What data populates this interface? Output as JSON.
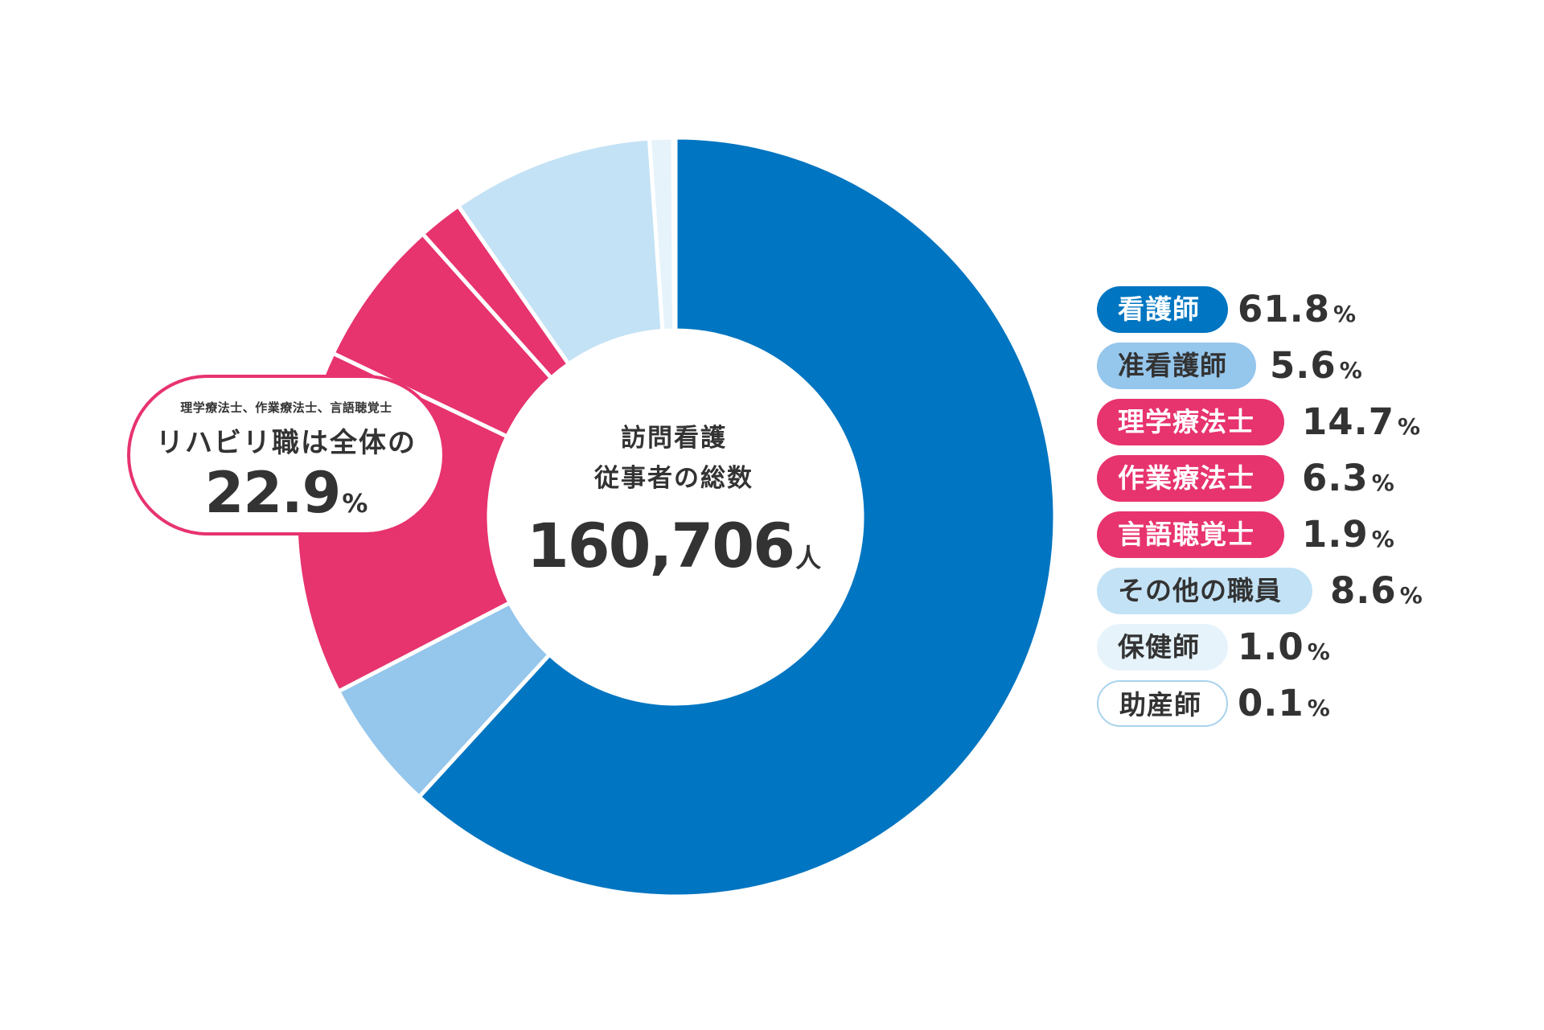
{
  "chart_data": {
    "type": "pie",
    "style": "donut",
    "center": {
      "line1": "訪問看護",
      "line2": "従事者の総数",
      "total": "160,706",
      "unit": "人"
    },
    "callout": {
      "subtitle": "理学療法士、作業療法士、言語聴覚士",
      "title": "リハビリ職は全体の",
      "value": "22.9",
      "unit": "%"
    },
    "series": [
      {
        "label": "看護師",
        "value": 61.8,
        "color": "#0075c1",
        "text_color": "#ffffff"
      },
      {
        "label": "准看護師",
        "value": 5.6,
        "color": "#95c6ec",
        "text_color": "#333333"
      },
      {
        "label": "理学療法士",
        "value": 14.7,
        "color": "#e7336e",
        "text_color": "#ffffff"
      },
      {
        "label": "作業療法士",
        "value": 6.3,
        "color": "#e7336e",
        "text_color": "#ffffff"
      },
      {
        "label": "言語聴覚士",
        "value": 1.9,
        "color": "#e7336e",
        "text_color": "#ffffff"
      },
      {
        "label": "その他の職員",
        "value": 8.6,
        "color": "#c3e2f5",
        "text_color": "#333333"
      },
      {
        "label": "保健師",
        "value": 1.0,
        "color": "#e6f3fb",
        "text_color": "#333333"
      },
      {
        "label": "助産師",
        "value": 0.1,
        "color": "#ffffff",
        "text_color": "#333333",
        "border": "#a9d3ee"
      }
    ],
    "unit": "%"
  }
}
